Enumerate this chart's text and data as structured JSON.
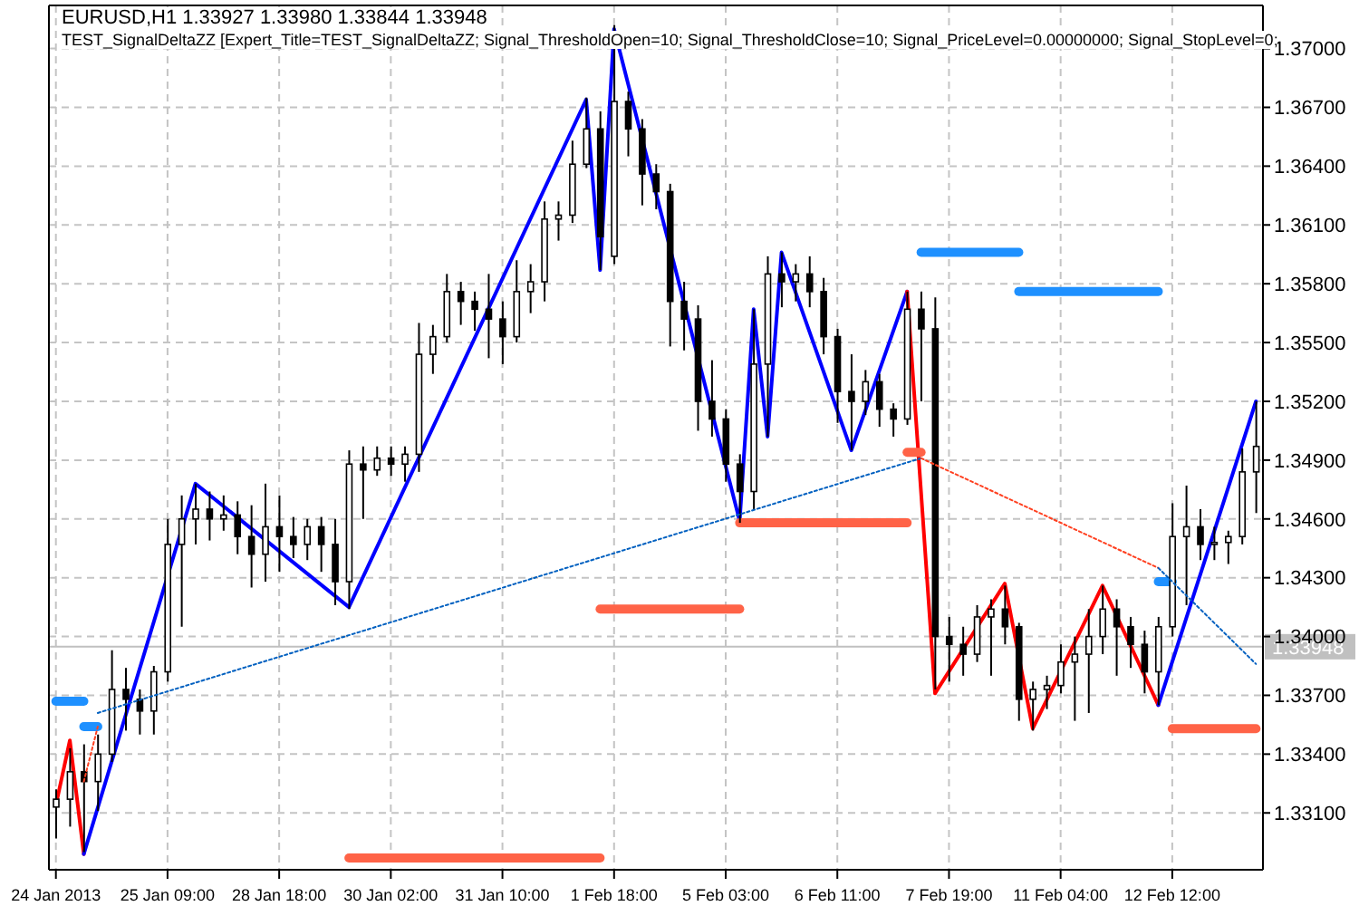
{
  "chart_data": {
    "type": "candlestick",
    "title": "EURUSD,H1  1.33927 1.33980 1.33844 1.33948",
    "subtitle": "TEST_SignalDeltaZZ [Expert_Title=TEST_SignalDeltaZZ; Signal_ThresholdOpen=10; Signal_ThresholdClose=10; Signal_PriceLevel=0.00000000; Signal_StopLevel=0;",
    "categories": [
      "24 Jan 2013",
      null,
      null,
      null,
      null,
      null,
      null,
      null,
      "25 Jan 09:00",
      null,
      null,
      null,
      null,
      null,
      null,
      null,
      "28 Jan 18:00",
      null,
      null,
      null,
      null,
      null,
      null,
      null,
      "30 Jan 02:00",
      null,
      null,
      null,
      null,
      null,
      null,
      null,
      "31 Jan 10:00",
      null,
      null,
      null,
      null,
      null,
      null,
      null,
      "1 Feb 18:00",
      null,
      null,
      null,
      null,
      null,
      null,
      null,
      "5 Feb 03:00",
      null,
      null,
      null,
      null,
      null,
      null,
      null,
      "6 Feb 11:00",
      null,
      null,
      null,
      null,
      null,
      null,
      null,
      "7 Feb 19:00",
      null,
      null,
      null,
      null,
      null,
      null,
      null,
      "11 Feb 04:00",
      null,
      null,
      null,
      null,
      null,
      null,
      null,
      "12 Feb 12:00",
      null,
      null,
      null,
      null,
      null,
      null
    ],
    "ohlc": [
      [
        1.3313,
        1.3322,
        1.3297,
        1.3317
      ],
      [
        1.3317,
        1.3343,
        1.3303,
        1.3331
      ],
      [
        1.3331,
        1.3345,
        1.329,
        1.3326
      ],
      [
        1.3326,
        1.335,
        1.3311,
        1.334
      ],
      [
        1.334,
        1.3393,
        1.3336,
        1.3373
      ],
      [
        1.3373,
        1.3384,
        1.3352,
        1.3368
      ],
      [
        1.3368,
        1.3373,
        1.335,
        1.3362
      ],
      [
        1.3362,
        1.3385,
        1.335,
        1.3382
      ],
      [
        1.3382,
        1.346,
        1.3377,
        1.3447
      ],
      [
        1.3447,
        1.3472,
        1.3405,
        1.346
      ],
      [
        1.346,
        1.3478,
        1.3447,
        1.3465
      ],
      [
        1.3465,
        1.3474,
        1.3449,
        1.346
      ],
      [
        1.346,
        1.3472,
        1.3454,
        1.3462
      ],
      [
        1.3462,
        1.3469,
        1.3442,
        1.3451
      ],
      [
        1.3451,
        1.3467,
        1.3425,
        1.3442
      ],
      [
        1.3442,
        1.3478,
        1.3428,
        1.3456
      ],
      [
        1.3456,
        1.3472,
        1.3433,
        1.3451
      ],
      [
        1.3451,
        1.3461,
        1.344,
        1.3447
      ],
      [
        1.3447,
        1.346,
        1.3439,
        1.3456
      ],
      [
        1.3456,
        1.3461,
        1.3433,
        1.3447
      ],
      [
        1.3447,
        1.346,
        1.3416,
        1.3428
      ],
      [
        1.3428,
        1.3495,
        1.3414,
        1.3488
      ],
      [
        1.3488,
        1.3497,
        1.346,
        1.3485
      ],
      [
        1.3485,
        1.3497,
        1.3482,
        1.3491
      ],
      [
        1.3491,
        1.3497,
        1.3482,
        1.3488
      ],
      [
        1.3488,
        1.3497,
        1.3479,
        1.3493
      ],
      [
        1.3493,
        1.356,
        1.3484,
        1.3544
      ],
      [
        1.3544,
        1.3559,
        1.3534,
        1.3553
      ],
      [
        1.3553,
        1.3585,
        1.355,
        1.3576
      ],
      [
        1.3576,
        1.3581,
        1.3559,
        1.3571
      ],
      [
        1.3571,
        1.3576,
        1.3556,
        1.3567
      ],
      [
        1.3567,
        1.3585,
        1.3542,
        1.3562
      ],
      [
        1.3562,
        1.3571,
        1.3539,
        1.3553
      ],
      [
        1.3553,
        1.3592,
        1.355,
        1.3576
      ],
      [
        1.3576,
        1.359,
        1.3565,
        1.3581
      ],
      [
        1.3581,
        1.3622,
        1.3571,
        1.3613
      ],
      [
        1.3613,
        1.3622,
        1.3602,
        1.3615
      ],
      [
        1.3615,
        1.3653,
        1.3611,
        1.3641
      ],
      [
        1.3641,
        1.3675,
        1.3639,
        1.3659
      ],
      [
        1.3659,
        1.3668,
        1.3587,
        1.3604
      ],
      [
        1.3594,
        1.3712,
        1.359,
        1.3673
      ],
      [
        1.3673,
        1.3678,
        1.3645,
        1.3659
      ],
      [
        1.3659,
        1.3664,
        1.362,
        1.3636
      ],
      [
        1.3636,
        1.3641,
        1.3618,
        1.3627
      ],
      [
        1.3627,
        1.3631,
        1.3548,
        1.3571
      ],
      [
        1.3571,
        1.3581,
        1.3546,
        1.3562
      ],
      [
        1.3562,
        1.3569,
        1.3505,
        1.352
      ],
      [
        1.352,
        1.3541,
        1.3502,
        1.3511
      ],
      [
        1.3511,
        1.3516,
        1.3479,
        1.3488
      ],
      [
        1.3488,
        1.3493,
        1.3458,
        1.3474
      ],
      [
        1.3474,
        1.3567,
        1.3465,
        1.3539
      ],
      [
        1.3539,
        1.3594,
        1.3502,
        1.3585
      ],
      [
        1.3585,
        1.3596,
        1.3568,
        1.3581
      ],
      [
        1.3581,
        1.359,
        1.3571,
        1.3585
      ],
      [
        1.3585,
        1.3594,
        1.3568,
        1.3576
      ],
      [
        1.3576,
        1.3583,
        1.3544,
        1.3553
      ],
      [
        1.3553,
        1.3557,
        1.3509,
        1.3525
      ],
      [
        1.3525,
        1.3544,
        1.3495,
        1.352
      ],
      [
        1.352,
        1.3536,
        1.3513,
        1.353
      ],
      [
        1.353,
        1.3534,
        1.3507,
        1.3516
      ],
      [
        1.3516,
        1.3519,
        1.3502,
        1.3511
      ],
      [
        1.3511,
        1.3576,
        1.3508,
        1.3567
      ],
      [
        1.3567,
        1.3576,
        1.352,
        1.3557
      ],
      [
        1.3557,
        1.3573,
        1.3373,
        1.34
      ],
      [
        1.34,
        1.341,
        1.3377,
        1.3396
      ],
      [
        1.3396,
        1.3405,
        1.338,
        1.3391
      ],
      [
        1.3391,
        1.3416,
        1.3387,
        1.341
      ],
      [
        1.341,
        1.3419,
        1.338,
        1.3414
      ],
      [
        1.3414,
        1.3426,
        1.3396,
        1.3405
      ],
      [
        1.3405,
        1.3407,
        1.3357,
        1.3368
      ],
      [
        1.3368,
        1.3377,
        1.3352,
        1.3373
      ],
      [
        1.3373,
        1.338,
        1.3363,
        1.3375
      ],
      [
        1.3375,
        1.3396,
        1.3371,
        1.3387
      ],
      [
        1.3387,
        1.34,
        1.3357,
        1.3391
      ],
      [
        1.3391,
        1.3414,
        1.3361,
        1.34
      ],
      [
        1.34,
        1.3426,
        1.3391,
        1.3414
      ],
      [
        1.3414,
        1.3419,
        1.338,
        1.3405
      ],
      [
        1.3405,
        1.341,
        1.3384,
        1.3396
      ],
      [
        1.3396,
        1.3403,
        1.3371,
        1.3382
      ],
      [
        1.3382,
        1.341,
        1.3365,
        1.3405
      ],
      [
        1.3405,
        1.3468,
        1.34,
        1.3451
      ],
      [
        1.3451,
        1.3477,
        1.3416,
        1.3456
      ],
      [
        1.3456,
        1.3465,
        1.3439,
        1.3447
      ],
      [
        1.3447,
        1.3456,
        1.3439,
        1.3448
      ],
      [
        1.3448,
        1.3454,
        1.3437,
        1.3451
      ],
      [
        1.3451,
        1.3496,
        1.3447,
        1.3484
      ],
      [
        1.3484,
        1.352,
        1.3463,
        1.3497
      ]
    ],
    "color": "#000000",
    "series": [
      {
        "type": "line",
        "color": "#ff0000",
        "line_style": "solid",
        "values": [
          1.3314,
          1.3347,
          1.3289,
          null,
          null,
          null,
          null,
          null,
          null,
          null,
          null,
          null,
          null,
          null,
          null,
          null,
          null,
          null,
          null,
          null,
          null,
          null,
          null,
          null,
          null,
          null,
          null,
          null,
          null,
          null,
          null,
          null,
          null,
          null,
          null,
          null,
          null,
          null,
          null,
          null,
          null,
          null,
          null,
          null,
          null,
          null,
          null,
          null,
          null,
          null,
          null,
          null,
          null,
          null,
          null,
          null,
          null,
          null,
          null,
          null,
          null,
          null,
          null,
          null,
          null,
          null,
          null,
          null,
          null,
          null,
          null,
          null,
          null,
          null,
          null,
          null,
          null,
          null,
          null,
          null,
          null,
          null,
          null,
          null,
          null,
          null,
          null
        ]
      },
      {
        "type": "line",
        "color": "#0000ff",
        "line_style": "solid",
        "values": [
          null,
          null,
          1.3289,
          null,
          null,
          null,
          null,
          null,
          null,
          null,
          1.3478,
          null,
          null,
          null,
          null,
          null,
          null,
          null,
          null,
          null,
          null,
          1.3415,
          null,
          null,
          null,
          null,
          null,
          null,
          null,
          null,
          null,
          null,
          null,
          null,
          null,
          null,
          null,
          null,
          1.3674,
          1.3587,
          1.371,
          null,
          null,
          null,
          null,
          null,
          null,
          null,
          null,
          1.3459,
          1.3567,
          1.3502,
          1.3596,
          null,
          null,
          null,
          null,
          1.3495,
          null,
          null,
          null,
          1.3576,
          null,
          null,
          null,
          null,
          null,
          null,
          null,
          null,
          null,
          null,
          null,
          null,
          null,
          null,
          null,
          null,
          null,
          null,
          null,
          null,
          null,
          null,
          null,
          null,
          null
        ]
      },
      {
        "type": "line",
        "color": "#ff0000",
        "line_style": "solid",
        "values": [
          null,
          null,
          null,
          null,
          null,
          null,
          null,
          null,
          null,
          null,
          null,
          null,
          null,
          null,
          null,
          null,
          null,
          null,
          null,
          null,
          null,
          null,
          null,
          null,
          null,
          null,
          null,
          null,
          null,
          null,
          null,
          null,
          null,
          null,
          null,
          null,
          null,
          null,
          null,
          null,
          null,
          null,
          null,
          null,
          null,
          null,
          null,
          null,
          null,
          null,
          null,
          null,
          null,
          null,
          null,
          null,
          null,
          null,
          null,
          null,
          null,
          1.3576,
          null,
          1.3371,
          null,
          null,
          null,
          null,
          1.3427,
          null,
          1.3353,
          null,
          null,
          null,
          null,
          1.3426,
          null,
          null,
          null,
          1.3365,
          null,
          null,
          null,
          null,
          null,
          null,
          null
        ]
      },
      {
        "type": "line",
        "color": "#0000ff",
        "line_style": "solid",
        "values": [
          null,
          null,
          null,
          null,
          null,
          null,
          null,
          null,
          null,
          null,
          null,
          null,
          null,
          null,
          null,
          null,
          null,
          null,
          null,
          null,
          null,
          null,
          null,
          null,
          null,
          null,
          null,
          null,
          null,
          null,
          null,
          null,
          null,
          null,
          null,
          null,
          null,
          null,
          null,
          null,
          null,
          null,
          null,
          null,
          null,
          null,
          null,
          null,
          null,
          null,
          null,
          null,
          null,
          null,
          null,
          null,
          null,
          null,
          null,
          null,
          null,
          null,
          null,
          null,
          null,
          null,
          null,
          null,
          null,
          null,
          null,
          null,
          null,
          null,
          null,
          null,
          null,
          null,
          null,
          1.3365,
          null,
          null,
          null,
          null,
          null,
          null,
          1.352
        ]
      },
      {
        "type": "line",
        "color": "#ff4020",
        "line_style": "dotted",
        "values": [
          null,
          null,
          1.3326,
          1.3354,
          null,
          null,
          null,
          null,
          null,
          null,
          null,
          null,
          null,
          null,
          null,
          null,
          null,
          null,
          null,
          null,
          null,
          null,
          null,
          null,
          null,
          null,
          null,
          null,
          null,
          null,
          null,
          null,
          null,
          null,
          null,
          null,
          null,
          null,
          null,
          null,
          null,
          null,
          null,
          null,
          null,
          null,
          null,
          null,
          null,
          null,
          null,
          null,
          null,
          null,
          null,
          null,
          null,
          null,
          null,
          null,
          null,
          null,
          null,
          null,
          null,
          null,
          null,
          null,
          null,
          null,
          null,
          null,
          null,
          null,
          null,
          null,
          null,
          null,
          null,
          null,
          null,
          null,
          null,
          null,
          null,
          null,
          null
        ]
      },
      {
        "type": "line",
        "color": "#0060c0",
        "line_style": "dotted",
        "values": [
          null,
          null,
          null,
          1.3361,
          null,
          null,
          null,
          null,
          null,
          null,
          null,
          null,
          null,
          null,
          null,
          null,
          null,
          null,
          null,
          null,
          null,
          null,
          null,
          null,
          null,
          null,
          null,
          null,
          null,
          null,
          null,
          null,
          null,
          null,
          null,
          null,
          null,
          null,
          null,
          null,
          null,
          null,
          null,
          null,
          null,
          null,
          null,
          null,
          null,
          null,
          null,
          null,
          null,
          null,
          null,
          null,
          null,
          null,
          null,
          null,
          null,
          null,
          1.3491,
          null,
          null,
          null,
          null,
          null,
          null,
          null,
          null,
          null,
          null,
          null,
          null,
          null,
          null,
          null,
          null,
          null,
          null,
          null,
          null,
          null,
          null,
          null,
          null
        ]
      },
      {
        "type": "line",
        "color": "#ff4020",
        "line_style": "dotted",
        "values": [
          null,
          null,
          null,
          null,
          null,
          null,
          null,
          null,
          null,
          null,
          null,
          null,
          null,
          null,
          null,
          null,
          null,
          null,
          null,
          null,
          null,
          null,
          null,
          null,
          null,
          null,
          null,
          null,
          null,
          null,
          null,
          null,
          null,
          null,
          null,
          null,
          null,
          null,
          null,
          null,
          null,
          null,
          null,
          null,
          null,
          null,
          null,
          null,
          null,
          null,
          null,
          null,
          null,
          null,
          null,
          null,
          null,
          null,
          null,
          null,
          null,
          null,
          1.3491,
          null,
          null,
          null,
          null,
          null,
          null,
          null,
          null,
          null,
          null,
          null,
          null,
          null,
          null,
          null,
          null,
          1.3435,
          null,
          null,
          null,
          null,
          null,
          null,
          null
        ]
      },
      {
        "type": "line",
        "color": "#0060c0",
        "line_style": "dotted",
        "values": [
          null,
          null,
          null,
          null,
          null,
          null,
          null,
          null,
          null,
          null,
          null,
          null,
          null,
          null,
          null,
          null,
          null,
          null,
          null,
          null,
          null,
          null,
          null,
          null,
          null,
          null,
          null,
          null,
          null,
          null,
          null,
          null,
          null,
          null,
          null,
          null,
          null,
          null,
          null,
          null,
          null,
          null,
          null,
          null,
          null,
          null,
          null,
          null,
          null,
          null,
          null,
          null,
          null,
          null,
          null,
          null,
          null,
          null,
          null,
          null,
          null,
          null,
          null,
          null,
          null,
          null,
          null,
          null,
          null,
          null,
          null,
          null,
          null,
          null,
          null,
          null,
          null,
          null,
          null,
          1.3435,
          null,
          null,
          null,
          null,
          null,
          null,
          1.3386
        ]
      },
      {
        "type": "line",
        "color": "#1e90ff",
        "line_style": "solid",
        "values": [
          1.3367,
          null,
          1.3367,
          null,
          null,
          null,
          null,
          null,
          null,
          null,
          null,
          null,
          null,
          null,
          null,
          null,
          null,
          null,
          null,
          null,
          null,
          null,
          null,
          null,
          null,
          null,
          null,
          null,
          null,
          null,
          null,
          null,
          null,
          null,
          null,
          null,
          null,
          null,
          null,
          null,
          null,
          null,
          null,
          null,
          null,
          null,
          null,
          null,
          null,
          null,
          null,
          null,
          null,
          null,
          null,
          null,
          null,
          null,
          null,
          null,
          null,
          null,
          null,
          null,
          null,
          null,
          null,
          null,
          null,
          null,
          null,
          null,
          null,
          null,
          null,
          null,
          null,
          null,
          null,
          null,
          null,
          null,
          null,
          null,
          null,
          null,
          null
        ]
      },
      {
        "type": "line",
        "color": "#1e90ff",
        "line_style": "solid",
        "values": [
          null,
          null,
          1.3354,
          1.3354,
          null,
          null,
          null,
          null,
          null,
          null,
          null,
          null,
          null,
          null,
          null,
          null,
          null,
          null,
          null,
          null,
          null,
          null,
          null,
          null,
          null,
          null,
          null,
          null,
          null,
          null,
          null,
          null,
          null,
          null,
          null,
          null,
          null,
          null,
          null,
          null,
          null,
          null,
          null,
          null,
          null,
          null,
          null,
          null,
          null,
          null,
          null,
          null,
          null,
          null,
          null,
          null,
          null,
          null,
          null,
          null,
          null,
          null,
          null,
          null,
          null,
          null,
          null,
          null,
          null,
          null,
          null,
          null,
          null,
          null,
          null,
          null,
          null,
          null,
          null,
          null,
          null,
          null,
          null,
          null,
          null,
          null,
          null
        ]
      },
      {
        "type": "line",
        "color": "#ff6347",
        "line_style": "solid",
        "values": [
          null,
          null,
          null,
          null,
          null,
          null,
          null,
          null,
          null,
          null,
          null,
          null,
          null,
          null,
          null,
          null,
          null,
          null,
          null,
          null,
          null,
          1.3287,
          null,
          null,
          null,
          null,
          null,
          null,
          null,
          null,
          null,
          null,
          null,
          null,
          null,
          null,
          null,
          null,
          null,
          1.3287,
          null,
          null,
          null,
          null,
          null,
          null,
          null,
          null,
          null,
          null,
          null,
          null,
          null,
          null,
          null,
          null,
          null,
          null,
          null,
          null,
          null,
          null,
          null,
          null,
          null,
          null,
          null,
          null,
          null,
          null,
          null,
          null,
          null,
          null,
          null,
          null,
          null,
          null,
          null,
          null,
          null,
          null,
          null,
          null,
          null,
          null,
          null
        ]
      },
      {
        "type": "line",
        "color": "#ff6347",
        "line_style": "solid",
        "values": [
          null,
          null,
          null,
          null,
          null,
          null,
          null,
          null,
          null,
          null,
          null,
          null,
          null,
          null,
          null,
          null,
          null,
          null,
          null,
          null,
          null,
          null,
          null,
          null,
          null,
          null,
          null,
          null,
          null,
          null,
          null,
          null,
          null,
          null,
          null,
          null,
          null,
          null,
          null,
          1.3414,
          null,
          null,
          null,
          null,
          null,
          null,
          null,
          null,
          null,
          1.3414,
          null,
          null,
          null,
          null,
          null,
          null,
          null,
          null,
          null,
          null,
          null,
          null,
          null,
          null,
          null,
          null,
          null,
          null,
          null,
          null,
          null,
          null,
          null,
          null,
          null,
          null,
          null,
          null,
          null,
          null,
          null,
          null,
          null,
          null,
          null,
          null,
          null
        ]
      },
      {
        "type": "line",
        "color": "#ff6347",
        "line_style": "solid",
        "values": [
          null,
          null,
          null,
          null,
          null,
          null,
          null,
          null,
          null,
          null,
          null,
          null,
          null,
          null,
          null,
          null,
          null,
          null,
          null,
          null,
          null,
          null,
          null,
          null,
          null,
          null,
          null,
          null,
          null,
          null,
          null,
          null,
          null,
          null,
          null,
          null,
          null,
          null,
          null,
          null,
          null,
          null,
          null,
          null,
          null,
          null,
          null,
          null,
          null,
          1.3458,
          null,
          null,
          null,
          null,
          null,
          null,
          null,
          null,
          null,
          null,
          null,
          1.3458,
          null,
          null,
          null,
          null,
          null,
          null,
          null,
          null,
          null,
          null,
          null,
          null,
          null,
          null,
          null,
          null,
          null,
          null,
          null,
          null,
          null,
          null,
          null,
          null,
          null
        ]
      },
      {
        "type": "line",
        "color": "#ff6347",
        "line_style": "solid",
        "values": [
          null,
          null,
          null,
          null,
          null,
          null,
          null,
          null,
          null,
          null,
          null,
          null,
          null,
          null,
          null,
          null,
          null,
          null,
          null,
          null,
          null,
          null,
          null,
          null,
          null,
          null,
          null,
          null,
          null,
          null,
          null,
          null,
          null,
          null,
          null,
          null,
          null,
          null,
          null,
          null,
          null,
          null,
          null,
          null,
          null,
          null,
          null,
          null,
          null,
          null,
          null,
          null,
          null,
          null,
          null,
          null,
          null,
          null,
          null,
          null,
          null,
          1.3494,
          1.3494,
          null,
          null,
          null,
          null,
          null,
          null,
          null,
          null,
          null,
          null,
          null,
          null,
          null,
          null,
          null,
          null,
          null,
          null,
          null,
          null,
          null,
          null,
          null,
          null
        ]
      },
      {
        "type": "line",
        "color": "#1e90ff",
        "line_style": "solid",
        "values": [
          null,
          null,
          null,
          null,
          null,
          null,
          null,
          null,
          null,
          null,
          null,
          null,
          null,
          null,
          null,
          null,
          null,
          null,
          null,
          null,
          null,
          null,
          null,
          null,
          null,
          null,
          null,
          null,
          null,
          null,
          null,
          null,
          null,
          null,
          null,
          null,
          null,
          null,
          null,
          null,
          null,
          null,
          null,
          null,
          null,
          null,
          null,
          null,
          null,
          null,
          null,
          null,
          null,
          null,
          null,
          null,
          null,
          null,
          null,
          null,
          null,
          null,
          1.3596,
          null,
          null,
          null,
          null,
          null,
          null,
          1.3596,
          null,
          null,
          null,
          null,
          null,
          null,
          null,
          null,
          null,
          null,
          null,
          null,
          null,
          null,
          null,
          null,
          null
        ]
      },
      {
        "type": "line",
        "color": "#1e90ff",
        "line_style": "solid",
        "values": [
          null,
          null,
          null,
          null,
          null,
          null,
          null,
          null,
          null,
          null,
          null,
          null,
          null,
          null,
          null,
          null,
          null,
          null,
          null,
          null,
          null,
          null,
          null,
          null,
          null,
          null,
          null,
          null,
          null,
          null,
          null,
          null,
          null,
          null,
          null,
          null,
          null,
          null,
          null,
          null,
          null,
          null,
          null,
          null,
          null,
          null,
          null,
          null,
          null,
          null,
          null,
          null,
          null,
          null,
          null,
          null,
          null,
          null,
          null,
          null,
          null,
          null,
          null,
          null,
          null,
          null,
          null,
          null,
          null,
          1.3576,
          null,
          null,
          null,
          null,
          null,
          null,
          null,
          null,
          null,
          1.3576,
          null,
          null,
          null,
          null,
          null,
          null,
          null
        ]
      },
      {
        "type": "line",
        "color": "#1e90ff",
        "line_style": "solid",
        "values": [
          null,
          null,
          null,
          null,
          null,
          null,
          null,
          null,
          null,
          null,
          null,
          null,
          null,
          null,
          null,
          null,
          null,
          null,
          null,
          null,
          null,
          null,
          null,
          null,
          null,
          null,
          null,
          null,
          null,
          null,
          null,
          null,
          null,
          null,
          null,
          null,
          null,
          null,
          null,
          null,
          null,
          null,
          null,
          null,
          null,
          null,
          null,
          null,
          null,
          null,
          null,
          null,
          null,
          null,
          null,
          null,
          null,
          null,
          null,
          null,
          null,
          null,
          null,
          null,
          null,
          null,
          null,
          null,
          null,
          null,
          null,
          null,
          null,
          null,
          null,
          null,
          null,
          null,
          null,
          1.3428,
          1.3428,
          null,
          null,
          null,
          null,
          null,
          null
        ]
      },
      {
        "type": "line",
        "color": "#ff6347",
        "line_style": "solid",
        "values": [
          null,
          null,
          null,
          null,
          null,
          null,
          null,
          null,
          null,
          null,
          null,
          null,
          null,
          null,
          null,
          null,
          null,
          null,
          null,
          null,
          null,
          null,
          null,
          null,
          null,
          null,
          null,
          null,
          null,
          null,
          null,
          null,
          null,
          null,
          null,
          null,
          null,
          null,
          null,
          null,
          null,
          null,
          null,
          null,
          null,
          null,
          null,
          null,
          null,
          null,
          null,
          null,
          null,
          null,
          null,
          null,
          null,
          null,
          null,
          null,
          null,
          null,
          null,
          null,
          null,
          null,
          null,
          null,
          null,
          null,
          null,
          null,
          null,
          null,
          null,
          null,
          null,
          null,
          null,
          null,
          1.3353,
          null,
          null,
          null,
          null,
          null,
          1.3353
        ]
      }
    ],
    "ylim": [
      1.3281,
      1.3722
    ],
    "yticks": [
      {
        "value": 1.331,
        "label": "1.33100"
      },
      {
        "value": 1.334,
        "label": "1.33400"
      },
      {
        "value": 1.337,
        "label": "1.33700"
      },
      {
        "value": 1.34,
        "label": "1.34000"
      },
      {
        "value": 1.343,
        "label": "1.34300"
      },
      {
        "value": 1.346,
        "label": "1.34600"
      },
      {
        "value": 1.349,
        "label": "1.34900"
      },
      {
        "value": 1.352,
        "label": "1.35200"
      },
      {
        "value": 1.355,
        "label": "1.35500"
      },
      {
        "value": 1.358,
        "label": "1.35800"
      },
      {
        "value": 1.361,
        "label": "1.36100"
      },
      {
        "value": 1.364,
        "label": "1.36400"
      },
      {
        "value": 1.367,
        "label": "1.36700"
      },
      {
        "value": 1.37,
        "label": "1.37000"
      }
    ],
    "grid": true,
    "ref_lines": [
      {
        "axis": "y",
        "value": 1.33948,
        "label": "1.33948",
        "color": "#c0c0c0"
      }
    ]
  }
}
